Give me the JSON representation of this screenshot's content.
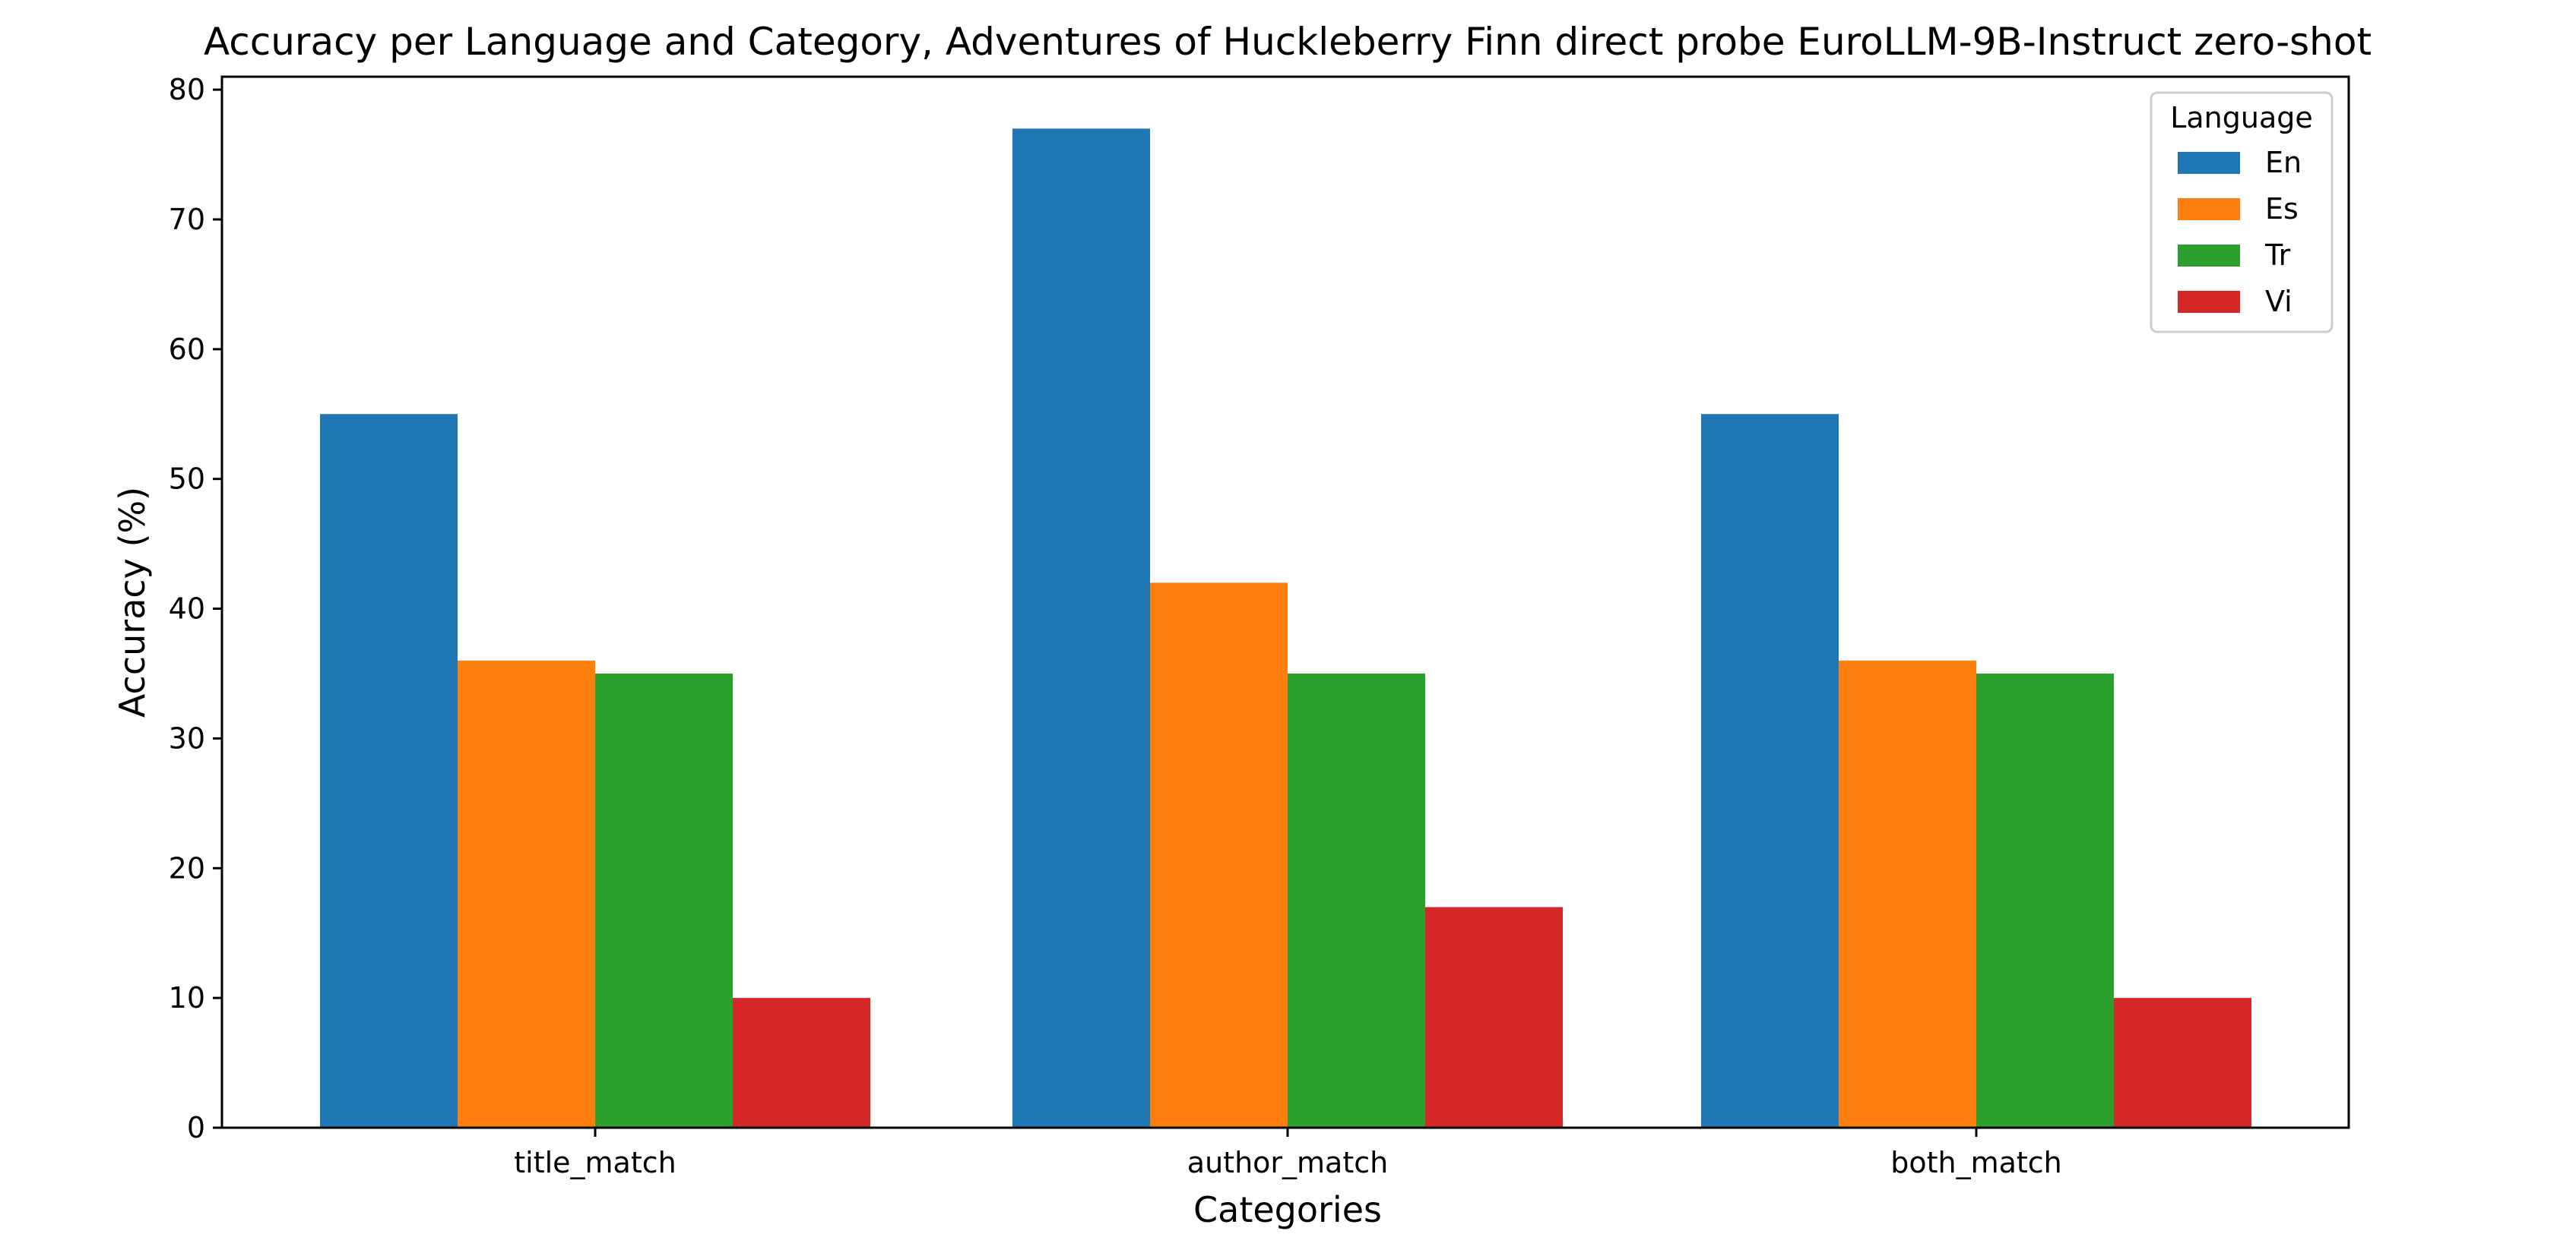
{
  "chart_data": {
    "type": "bar",
    "title": "Accuracy per Language and Category, Adventures of Huckleberry Finn direct probe EuroLLM-9B-Instruct zero-shot",
    "xlabel": "Categories",
    "ylabel": "Accuracy (%)",
    "categories": [
      "title_match",
      "author_match",
      "both_match"
    ],
    "ylim": [
      0,
      81
    ],
    "yticks": [
      0,
      10,
      20,
      30,
      40,
      50,
      60,
      70,
      80
    ],
    "grid": false,
    "legend": {
      "title": "Language",
      "placement": "top-right"
    },
    "series": [
      {
        "name": "En",
        "color": "#1f77b4",
        "values": [
          55,
          77,
          55
        ]
      },
      {
        "name": "Es",
        "color": "#ff7f0e",
        "values": [
          36,
          42,
          36
        ]
      },
      {
        "name": "Tr",
        "color": "#2ca02c",
        "values": [
          35,
          35,
          35
        ]
      },
      {
        "name": "Vi",
        "color": "#d62728",
        "values": [
          10,
          17,
          10
        ]
      }
    ]
  }
}
